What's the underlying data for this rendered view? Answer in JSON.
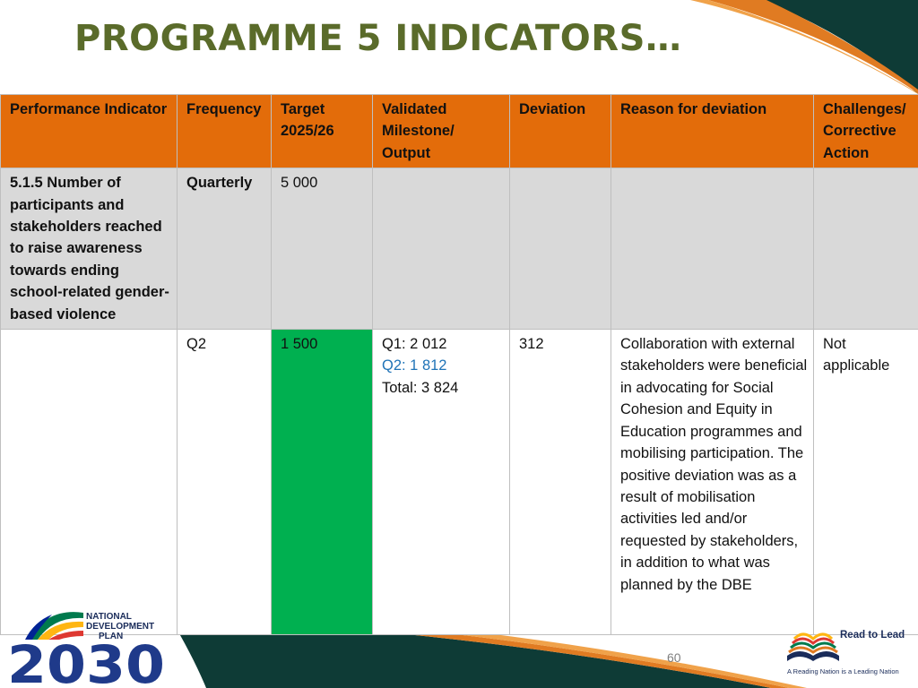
{
  "title": "PROGRAMME 5 INDICATORS…",
  "table": {
    "headers": [
      "Performance Indicator",
      "Frequency",
      "Target 2025/26",
      "Validated Milestone/ Output",
      "Deviation",
      "Reason for deviation",
      "Challenges/ Corrective Action"
    ],
    "indicator_row": {
      "indicator": "5.1.5 Number of participants and stakeholders reached to raise awareness towards ending school-related gender-based violence",
      "frequency": "Quarterly",
      "target": "5 000"
    },
    "quarter_row": {
      "quarter": "Q2",
      "target": "1 500",
      "milestone_q1": "Q1: 2 012",
      "milestone_q2": "Q2: 1 812",
      "milestone_total": "Total: 3 824",
      "deviation": "312",
      "reason": "Collaboration with external stakeholders were beneficial in advocating for Social Cohesion and Equity in Education programmes and mobilising participation. The positive deviation was as a result of mobilisation activities led and/or requested by stakeholders, in addition to what was planned by the DBE",
      "corrective_action": "Not applicable"
    }
  },
  "page_number": "60",
  "logos": {
    "ndp": {
      "line1": "NATIONAL",
      "line2": "DEVELOPMENT",
      "line3": "PLAN",
      "year": "2030"
    },
    "read_to_lead": {
      "title": "Read to Lead",
      "tagline": "A Reading Nation is a Leading Nation"
    }
  },
  "colors": {
    "title": "#5a6b2a",
    "header_bg": "#e36c0a",
    "indicator_row_bg": "#d9d9d9",
    "target_highlight": "#00b050",
    "q2_text": "#1f73b7",
    "dark_teal": "#0e3b36",
    "orange": "#e07b22",
    "navy": "#1a2c5a"
  }
}
